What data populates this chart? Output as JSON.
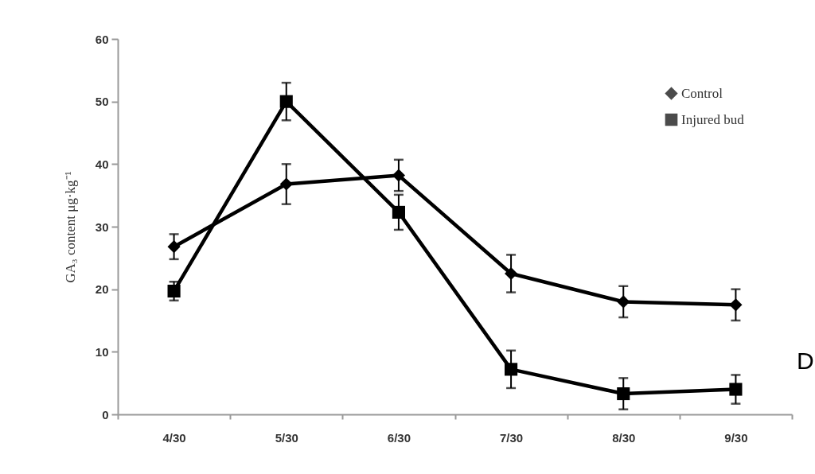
{
  "chart_data": {
    "type": "line",
    "ylabel": "GA₃ content μg·kg⁻¹",
    "categories": [
      "4/30",
      "5/30",
      "6/30",
      "7/30",
      "8/30",
      "9/30"
    ],
    "series": [
      {
        "name": "Control",
        "color": "#000000",
        "marker": "diamond",
        "values": [
          26.8,
          36.8,
          38.2,
          22.5,
          18,
          17.5
        ],
        "errors": [
          2,
          3.2,
          2.5,
          3,
          2.5,
          2.5
        ]
      },
      {
        "name": "Injured bud",
        "color": "#000000",
        "marker": "square",
        "values": [
          19.7,
          50,
          32.3,
          7.2,
          3.3,
          4
        ],
        "errors": [
          1.5,
          3,
          2.8,
          3,
          2.5,
          2.3
        ]
      }
    ],
    "ylim": [
      0,
      60
    ],
    "yticks": [
      0,
      10,
      20,
      30,
      40,
      50,
      60
    ],
    "grid": false,
    "legend": "top right",
    "line_style": "solid",
    "annotations": [
      "D"
    ]
  }
}
